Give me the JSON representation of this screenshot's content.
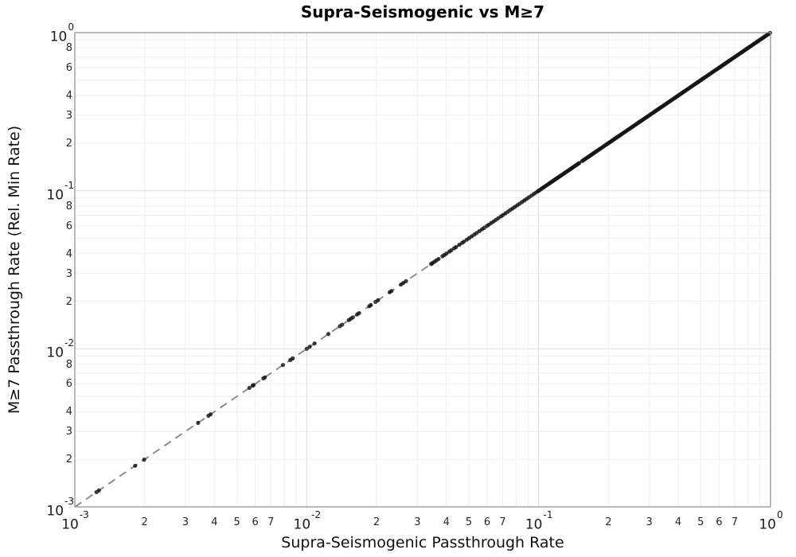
{
  "chart_data": {
    "type": "scatter",
    "title": "Supra-Seismogenic vs M≥7",
    "xlabel": "Supra-Seismogenic Passthrough Rate",
    "ylabel": "M≥7 Passthrough Rate (Rel. Min Rate)",
    "x_scale": "log",
    "y_scale": "log",
    "xlim": [
      0.001,
      1.0
    ],
    "ylim": [
      0.001,
      1.0
    ],
    "grid": true,
    "colors": {
      "background": "#ffffff",
      "grid_minor": "#efefef",
      "grid_major": "#e3e3e3",
      "plot_border": "#999999",
      "identity_line": "#8c8c8c",
      "marker": "#141414",
      "text": "#1c1c1c"
    },
    "identity_line": {
      "style": "dashed",
      "x0": 0.001,
      "y0": 0.001,
      "x1": 1.0,
      "y1": 1.0
    },
    "marker": {
      "shape": "circle",
      "opacity": 0.82,
      "radius_px": 2.6
    },
    "points_x": [
      0.00124,
      0.00127,
      0.00182,
      0.00199,
      0.0034,
      0.00377,
      0.00385,
      0.00566,
      0.00585,
      0.0059,
      0.0065,
      0.0066,
      0.0079,
      0.0085,
      0.0087,
      0.01,
      0.0103,
      0.0108,
      0.0124,
      0.0139,
      0.0142,
      0.0152,
      0.0155,
      0.0158,
      0.0165,
      0.0168,
      0.0186,
      0.0189,
      0.0198,
      0.0203,
      0.0228,
      0.0232,
      0.0255,
      0.0261,
      0.0268,
      0.0344,
      0.0348,
      0.0355,
      0.0362,
      0.037,
      0.0385,
      0.0392,
      0.04,
      0.0412,
      0.042,
      0.0432,
      0.044,
      0.0455,
      0.0468,
      0.0476,
      0.049,
      0.0502,
      0.0515,
      0.0528,
      0.054,
      0.0555,
      0.057,
      0.0582,
      0.0598,
      0.061,
      0.0625,
      0.064,
      0.0655,
      0.067,
      0.0688,
      0.0702,
      0.072,
      0.0738,
      0.0755,
      0.0772,
      0.079,
      0.081,
      0.0828,
      0.0848,
      0.0868,
      0.0888,
      0.0908,
      0.093,
      0.0952,
      0.0974,
      0.0996
    ],
    "points_y_rule": "y = x",
    "dense_point_bands_log10": [
      {
        "start": -1.0,
        "end": -0.822,
        "step": 0.005
      },
      {
        "start": -0.812,
        "end": 0.0,
        "step": 0.005
      }
    ],
    "x_axis": {
      "major_ticks": [
        {
          "base": "10",
          "exp": "-3",
          "log": -3
        },
        {
          "base": "10",
          "exp": "-2",
          "log": -2
        },
        {
          "base": "10",
          "exp": "-1",
          "log": -1
        },
        {
          "base": "10",
          "exp": "0",
          "log": 0
        }
      ],
      "minor_ticks": [
        {
          "t": "2",
          "log": -2.69897
        },
        {
          "t": "3",
          "log": -2.52288
        },
        {
          "t": "4",
          "log": -2.39794
        },
        {
          "t": "5",
          "log": -2.30103
        },
        {
          "t": "6",
          "log": -2.22185
        },
        {
          "t": "7",
          "log": -2.1549
        },
        {
          "t": "2",
          "log": -1.69897
        },
        {
          "t": "3",
          "log": -1.52288
        },
        {
          "t": "4",
          "log": -1.39794
        },
        {
          "t": "5",
          "log": -1.30103
        },
        {
          "t": "6",
          "log": -1.22185
        },
        {
          "t": "7",
          "log": -1.1549
        },
        {
          "t": "2",
          "log": -0.69897
        },
        {
          "t": "3",
          "log": -0.52288
        },
        {
          "t": "4",
          "log": -0.39794
        },
        {
          "t": "5",
          "log": -0.30103
        },
        {
          "t": "6",
          "log": -0.22185
        },
        {
          "t": "7",
          "log": -0.1549
        }
      ]
    },
    "y_axis": {
      "major_ticks": [
        {
          "base": "10",
          "exp": "0",
          "log": 0
        },
        {
          "base": "10",
          "exp": "-1",
          "log": -1
        },
        {
          "base": "10",
          "exp": "-2",
          "log": -2
        },
        {
          "base": "10",
          "exp": "-3",
          "log": -3
        }
      ],
      "minor_ticks": [
        {
          "t": "8",
          "log": -0.09691
        },
        {
          "t": "6",
          "log": -0.22185
        },
        {
          "t": "4",
          "log": -0.39794
        },
        {
          "t": "3",
          "log": -0.52288
        },
        {
          "t": "2",
          "log": -0.69897
        },
        {
          "t": "8",
          "log": -1.09691
        },
        {
          "t": "6",
          "log": -1.22185
        },
        {
          "t": "4",
          "log": -1.39794
        },
        {
          "t": "3",
          "log": -1.52288
        },
        {
          "t": "2",
          "log": -1.69897
        },
        {
          "t": "8",
          "log": -2.09691
        },
        {
          "t": "6",
          "log": -2.22185
        },
        {
          "t": "4",
          "log": -2.39794
        },
        {
          "t": "3",
          "log": -2.52288
        },
        {
          "t": "2",
          "log": -2.69897
        }
      ]
    }
  }
}
